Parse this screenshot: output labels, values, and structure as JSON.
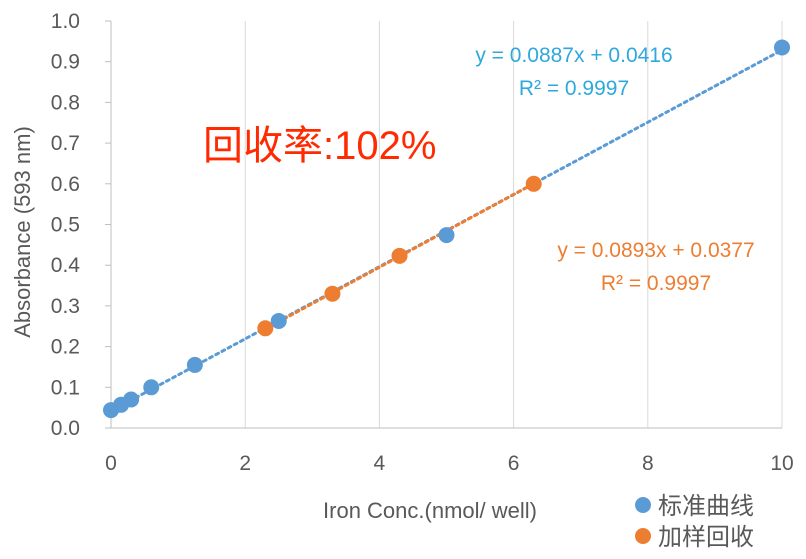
{
  "chart_data": {
    "type": "scatter",
    "title": "",
    "xlabel": "Iron Conc.(nmol/ well)",
    "ylabel": "Absorbance (593 nm)",
    "xlim": [
      0,
      10
    ],
    "ylim": [
      0,
      1
    ],
    "x_ticks": [
      0,
      2,
      4,
      6,
      8,
      10
    ],
    "y_ticks": [
      0.0,
      0.1,
      0.2,
      0.3,
      0.4,
      0.5,
      0.6,
      0.7,
      0.8,
      0.9,
      1.0
    ],
    "x_tick_labels": [
      "0",
      "2",
      "4",
      "6",
      "8",
      "10"
    ],
    "y_tick_labels": [
      "0.0",
      "0.1",
      "0.2",
      "0.3",
      "0.4",
      "0.5",
      "0.6",
      "0.7",
      "0.8",
      "0.9",
      "1.0"
    ],
    "grid": "vertical",
    "legend_placement": "bottom-right",
    "series": [
      {
        "name": "标准曲线",
        "color": "#5b9bd5",
        "x": [
          0,
          0.15,
          0.3,
          0.6,
          1.25,
          2.5,
          5,
          10
        ],
        "y": [
          0.044,
          0.057,
          0.07,
          0.1,
          0.155,
          0.263,
          0.474,
          0.935
        ],
        "trendline": {
          "slope": 0.0887,
          "intercept": 0.0416,
          "x_range": [
            0,
            10
          ]
        }
      },
      {
        "name": "加样回收",
        "color": "#ed7d31",
        "x": [
          2.3,
          3.3,
          4.3,
          6.3
        ],
        "y": [
          0.245,
          0.33,
          0.423,
          0.6
        ],
        "trendline": {
          "slope": 0.0893,
          "intercept": 0.0377,
          "x_range": [
            2.3,
            6.3
          ]
        }
      }
    ],
    "annotations": [
      {
        "text": "y = 0.0887x + 0.0416",
        "color": "#2ea8dd"
      },
      {
        "text": "R² = 0.9997",
        "color": "#2ea8dd"
      },
      {
        "text": "y = 0.0893x + 0.0377",
        "color": "#ed7d31"
      },
      {
        "text": "R² = 0.9997",
        "color": "#ed7d31"
      },
      {
        "text": "回收率:102%",
        "color": "#ff2a00"
      }
    ]
  }
}
